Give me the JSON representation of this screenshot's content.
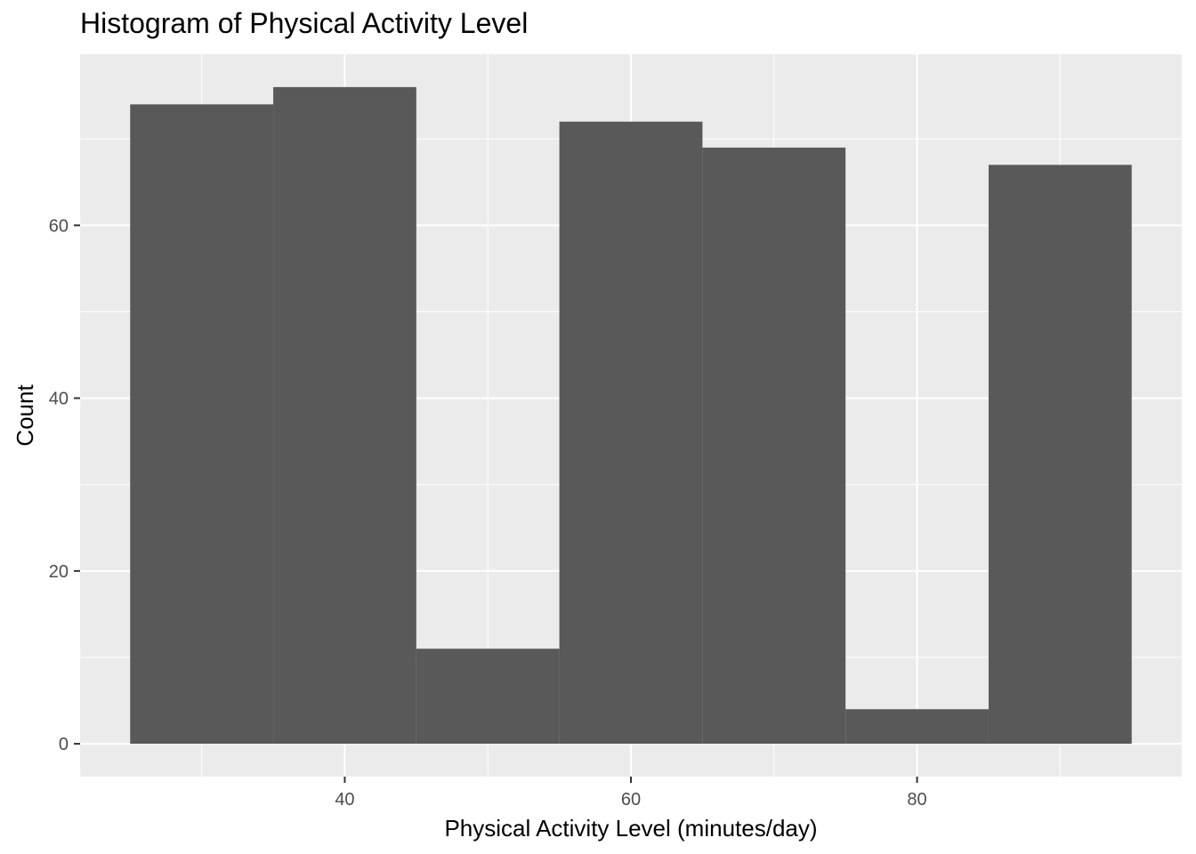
{
  "chart_data": {
    "type": "bar",
    "title": "Histogram of Physical Activity Level",
    "xlabel": "Physical Activity Level (minutes/day)",
    "ylabel": "Count",
    "bins": [
      {
        "x0": 25,
        "x1": 35,
        "count": 74
      },
      {
        "x0": 35,
        "x1": 45,
        "count": 76
      },
      {
        "x0": 45,
        "x1": 55,
        "count": 11
      },
      {
        "x0": 55,
        "x1": 65,
        "count": 72
      },
      {
        "x0": 65,
        "x1": 75,
        "count": 69
      },
      {
        "x0": 75,
        "x1": 85,
        "count": 4
      },
      {
        "x0": 85,
        "x1": 95,
        "count": 67
      }
    ],
    "xlim": [
      21.5,
      98.5
    ],
    "ylim": [
      -3.8,
      79.8
    ],
    "x_ticks": [
      40,
      60,
      80
    ],
    "y_ticks": [
      0,
      20,
      40,
      60
    ],
    "x_tick_labels": [
      "40",
      "60",
      "80"
    ],
    "y_tick_labels": [
      "0",
      "20",
      "40",
      "60"
    ],
    "grid": true,
    "colors": {
      "panel": "#ebebeb",
      "grid": "#ffffff",
      "bar": "#595959",
      "tick_text": "#4d4d4d"
    }
  }
}
